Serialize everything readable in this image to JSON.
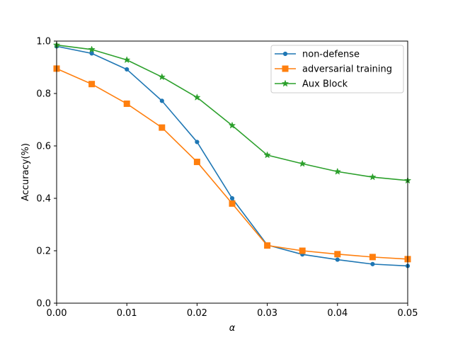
{
  "chart_data": {
    "type": "line",
    "xlabel": "α",
    "ylabel": "Accuracy(%)",
    "xlim": [
      0,
      0.05
    ],
    "ylim": [
      0,
      1.0
    ],
    "x_ticks": [
      "0.00",
      "0.01",
      "0.02",
      "0.03",
      "0.04",
      "0.05"
    ],
    "y_ticks": [
      "0.0",
      "0.2",
      "0.4",
      "0.6",
      "0.8",
      "1.0"
    ],
    "grid": false,
    "legend_position": "top-right",
    "x": [
      0.0,
      0.005,
      0.01,
      0.015,
      0.02,
      0.025,
      0.03,
      0.035,
      0.04,
      0.045,
      0.05
    ],
    "series": [
      {
        "name": "non-defense",
        "color": "#1f77b4",
        "marker": "circle",
        "values": [
          0.98,
          0.953,
          0.892,
          0.772,
          0.615,
          0.4,
          0.222,
          0.186,
          0.166,
          0.149,
          0.142
        ]
      },
      {
        "name": "adversarial training",
        "color": "#ff7f0e",
        "marker": "square",
        "values": [
          0.895,
          0.836,
          0.761,
          0.67,
          0.539,
          0.38,
          0.22,
          0.2,
          0.187,
          0.176,
          0.168
        ]
      },
      {
        "name": "Aux Block",
        "color": "#2ca02c",
        "marker": "star",
        "values": [
          0.985,
          0.968,
          0.928,
          0.863,
          0.785,
          0.678,
          0.565,
          0.532,
          0.502,
          0.481,
          0.468
        ]
      }
    ]
  }
}
